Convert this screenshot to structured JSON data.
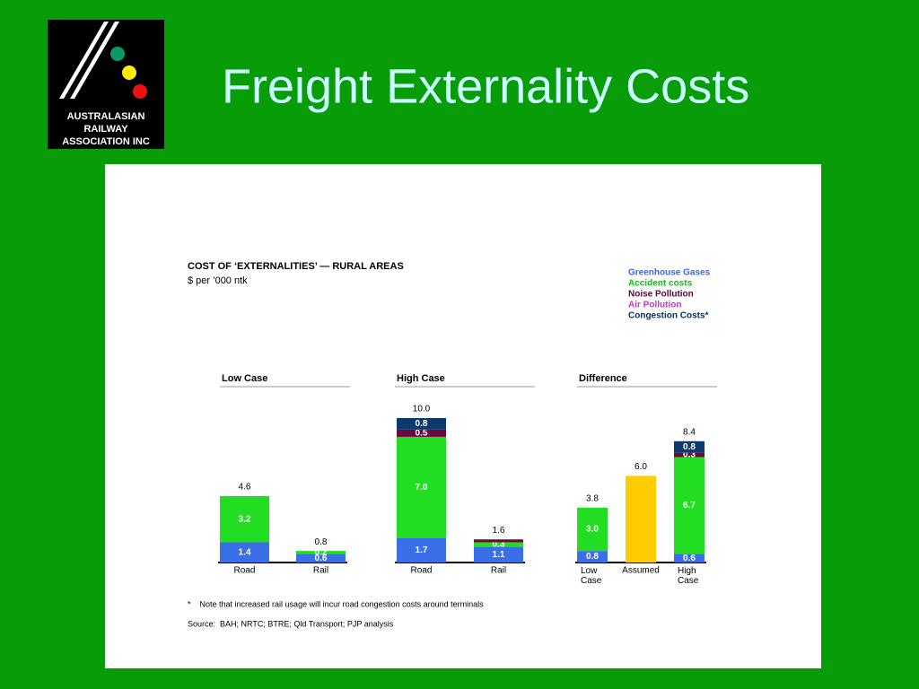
{
  "slide_title": "Freight Externality Costs",
  "logo": {
    "lines": [
      "AUSTRALASIAN",
      "RAILWAY",
      "ASSOCIATION INC"
    ]
  },
  "figure_title": "COST OF ‘EXTERNALITIES’ — RURAL AREAS",
  "figure_subtitle": "$ per ’000 ntk",
  "legend": {
    "items": [
      {
        "name": "Greenhouse Gases",
        "color": "#3366ff"
      },
      {
        "name": "Accident costs",
        "color": "#00cc00"
      },
      {
        "name": "Noise Pollution",
        "color": "#660033"
      },
      {
        "name": "Air Pollution",
        "color": "#cc33cc"
      },
      {
        "name": "Congestion Costs*",
        "color": "#003366"
      }
    ]
  },
  "chart_data": [
    {
      "type": "bar",
      "stacked": true,
      "title": "Low Case",
      "categories": [
        "Road",
        "Rail"
      ],
      "ylim": [
        0,
        10
      ],
      "totals": [
        4.6,
        0.8
      ],
      "total_labels": [
        "4.6",
        "0.8"
      ],
      "series": [
        {
          "color": "#3a6fe8",
          "values": [
            1.4,
            0.6
          ],
          "value_labels": [
            "1.4",
            "0.6"
          ]
        },
        {
          "color": "#22dd22",
          "values": [
            3.2,
            0.2
          ],
          "value_labels": [
            "3.2",
            "0.2"
          ]
        },
        {
          "color": "#6b0a3a",
          "values": [
            null,
            null
          ],
          "value_labels": [
            null,
            null
          ]
        },
        {
          "color": "#cc33cc",
          "values": [
            null,
            null
          ],
          "value_labels": [
            null,
            null
          ]
        },
        {
          "color": "#0d3a6e",
          "values": [
            null,
            null
          ],
          "value_labels": [
            null,
            null
          ]
        }
      ]
    },
    {
      "type": "bar",
      "stacked": true,
      "title": "High Case",
      "categories": [
        "Road",
        "Rail"
      ],
      "ylim": [
        0,
        10
      ],
      "totals": [
        10.0,
        1.6
      ],
      "total_labels": [
        "10.0",
        "1.6"
      ],
      "series": [
        {
          "color": "#3a6fe8",
          "values": [
            1.7,
            1.1
          ],
          "value_labels": [
            "1.7",
            "1.1"
          ]
        },
        {
          "color": "#22dd22",
          "values": [
            7.0,
            0.3
          ],
          "value_labels": [
            "7.0",
            "0.3"
          ]
        },
        {
          "color": "#6b0a3a",
          "values": [
            0.5,
            0.2
          ],
          "value_labels": [
            "0.5",
            null
          ]
        },
        {
          "color": "#cc33cc",
          "values": [
            null,
            null
          ],
          "value_labels": [
            null,
            null
          ]
        },
        {
          "color": "#0d3a6e",
          "values": [
            0.8,
            null
          ],
          "value_labels": [
            "0.8",
            null
          ]
        }
      ]
    },
    {
      "type": "bar",
      "stacked": true,
      "title": "Difference",
      "categories": [
        "Low Case",
        "Assumed",
        "High Case"
      ],
      "ylim": [
        0,
        10
      ],
      "totals": [
        3.8,
        6.0,
        8.4
      ],
      "total_labels": [
        "3.8",
        "6.0",
        "8.4"
      ],
      "series": [
        {
          "color": "#3a6fe8",
          "values": [
            0.8,
            null,
            0.6
          ],
          "value_labels": [
            "0.8",
            null,
            "0.6"
          ]
        },
        {
          "color": "#22dd22",
          "values": [
            3.0,
            null,
            6.7
          ],
          "value_labels": [
            "3.0",
            null,
            "6.7"
          ]
        },
        {
          "color": "#6b0a3a",
          "values": [
            null,
            null,
            0.3
          ],
          "value_labels": [
            null,
            null,
            "0.3"
          ]
        },
        {
          "color": "#cc33cc",
          "values": [
            null,
            null,
            null
          ],
          "value_labels": [
            null,
            null,
            null
          ]
        },
        {
          "color": "#0d3a6e",
          "values": [
            null,
            null,
            0.8
          ],
          "value_labels": [
            null,
            null,
            "0.8"
          ]
        },
        {
          "color": "#ffcc00",
          "values": [
            null,
            6.0,
            null
          ],
          "value_labels": [
            null,
            null,
            null
          ]
        }
      ]
    }
  ],
  "footnote": "*    Note that increased rail usage will incur road congestion costs around terminals",
  "source": "Source:  BAH; NRTC; BTRE; Qld Transport; PJP analysis"
}
